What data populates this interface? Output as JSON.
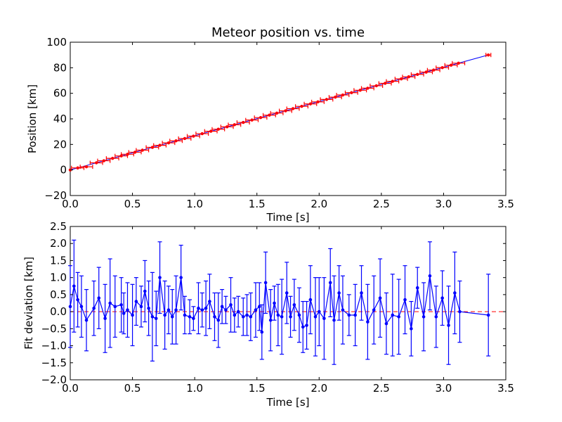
{
  "colors": {
    "background": "#ffffff",
    "axes_frame": "#000000",
    "fit_line": "#0000ff",
    "position_error_bars": "#ff0000",
    "position_points": "#ff0000",
    "deviation_series": "#0000ff",
    "zero_line": "#ff0000"
  },
  "chart_data": [
    {
      "type": "line",
      "title": "Meteor position vs. time",
      "xlabel": "Time [s]",
      "ylabel": "Position [km]",
      "xlim": [
        0.0,
        3.5
      ],
      "ylim": [
        -20,
        100
      ],
      "xticks": [
        "0.0",
        "0.5",
        "1.0",
        "1.5",
        "2.0",
        "2.5",
        "3.0",
        "3.5"
      ],
      "yticks": [
        "−20",
        "0",
        "20",
        "40",
        "60",
        "80",
        "100"
      ],
      "legend": "none",
      "grid": false,
      "series": [
        {
          "style": "linear fit line",
          "x": [
            0.0,
            3.36
          ],
          "y": [
            0.0,
            90.0
          ]
        },
        {
          "style": "points with horizontal error bars",
          "x": [
            0.0,
            0.06,
            0.13,
            0.21,
            0.27,
            0.34,
            0.41,
            0.46,
            0.52,
            0.58,
            0.66,
            0.72,
            0.79,
            0.85,
            0.92,
            0.99,
            1.06,
            1.13,
            1.19,
            1.26,
            1.32,
            1.39,
            1.46,
            1.53,
            1.6,
            1.66,
            1.73,
            1.79,
            1.86,
            1.93,
            1.99,
            2.06,
            2.13,
            2.19,
            2.26,
            2.33,
            2.39,
            2.46,
            2.53,
            2.59,
            2.66,
            2.72,
            2.79,
            2.86,
            2.92,
            2.99,
            3.06,
            3.12,
            3.36
          ],
          "y": [
            0.0,
            1.6,
            2.5,
            5.6,
            7.2,
            9.1,
            11.0,
            12.3,
            13.9,
            15.5,
            17.7,
            19.3,
            21.2,
            22.8,
            24.6,
            26.5,
            28.4,
            30.3,
            31.9,
            33.8,
            35.4,
            37.2,
            39.1,
            41.0,
            42.9,
            44.5,
            46.3,
            48.0,
            49.8,
            51.7,
            53.3,
            55.2,
            57.0,
            58.7,
            60.5,
            62.4,
            64.0,
            65.9,
            67.8,
            69.4,
            71.3,
            72.9,
            74.8,
            76.6,
            78.2,
            80.1,
            82.0,
            83.6,
            90.0
          ],
          "xerr": [
            0.0,
            0.05,
            0.05,
            0.05,
            0.05,
            0.05,
            0.05,
            0.05,
            0.05,
            0.05,
            0.05,
            0.05,
            0.05,
            0.05,
            0.05,
            0.05,
            0.05,
            0.05,
            0.05,
            0.05,
            0.05,
            0.05,
            0.05,
            0.05,
            0.05,
            0.05,
            0.05,
            0.05,
            0.05,
            0.05,
            0.05,
            0.05,
            0.05,
            0.05,
            0.05,
            0.05,
            0.05,
            0.05,
            0.05,
            0.05,
            0.05,
            0.05,
            0.05,
            0.05,
            0.05,
            0.05,
            0.05,
            0.05,
            0.02
          ]
        }
      ]
    },
    {
      "type": "line",
      "title": "",
      "xlabel": "Time [s]",
      "ylabel": "Fit deviation [km]",
      "xlim": [
        0.0,
        3.5
      ],
      "ylim": [
        -2.0,
        2.5
      ],
      "xticks": [
        "0.0",
        "0.5",
        "1.0",
        "1.5",
        "2.0",
        "2.5",
        "3.0",
        "3.5"
      ],
      "yticks": [
        "−2.0",
        "−1.5",
        "−1.0",
        "−0.5",
        "0.0",
        "0.5",
        "1.0",
        "1.5",
        "2.0",
        "2.5"
      ],
      "legend": "none",
      "grid": false,
      "series": [
        {
          "style": "points with vertical error bars connected by line",
          "x": [
            0.0,
            0.03,
            0.06,
            0.09,
            0.13,
            0.19,
            0.23,
            0.28,
            0.32,
            0.36,
            0.41,
            0.43,
            0.46,
            0.5,
            0.53,
            0.57,
            0.6,
            0.63,
            0.66,
            0.69,
            0.72,
            0.76,
            0.79,
            0.82,
            0.85,
            0.89,
            0.92,
            0.96,
            0.99,
            1.03,
            1.06,
            1.09,
            1.12,
            1.16,
            1.19,
            1.22,
            1.25,
            1.29,
            1.32,
            1.35,
            1.39,
            1.42,
            1.45,
            1.49,
            1.52,
            1.54,
            1.57,
            1.61,
            1.64,
            1.67,
            1.7,
            1.74,
            1.77,
            1.8,
            1.84,
            1.87,
            1.9,
            1.93,
            1.97,
            2.0,
            2.04,
            2.09,
            2.12,
            2.16,
            2.19,
            2.24,
            2.29,
            2.34,
            2.39,
            2.44,
            2.49,
            2.54,
            2.59,
            2.64,
            2.69,
            2.74,
            2.79,
            2.84,
            2.89,
            2.94,
            2.99,
            3.04,
            3.09,
            3.13,
            3.36
          ],
          "y": [
            0.15,
            0.75,
            0.35,
            0.15,
            -0.25,
            0.1,
            0.4,
            -0.2,
            0.25,
            0.15,
            0.2,
            -0.05,
            0.05,
            -0.1,
            0.3,
            0.15,
            0.6,
            0.1,
            -0.15,
            -0.2,
            1.0,
            -0.1,
            0.05,
            -0.15,
            0.05,
            1.0,
            -0.1,
            -0.15,
            -0.2,
            0.1,
            0.05,
            0.1,
            0.3,
            -0.15,
            -0.25,
            0.15,
            0.05,
            0.2,
            -0.1,
            0.0,
            -0.15,
            -0.1,
            -0.15,
            0.05,
            0.15,
            -0.6,
            0.85,
            -0.25,
            0.25,
            -0.1,
            -0.15,
            0.55,
            -0.15,
            0.2,
            -0.1,
            -0.45,
            -0.4,
            0.35,
            -0.15,
            0.0,
            -0.2,
            0.85,
            -0.25,
            0.55,
            0.05,
            -0.1,
            -0.1,
            0.55,
            -0.3,
            0.05,
            0.4,
            -0.35,
            -0.1,
            -0.15,
            0.35,
            -0.5,
            0.7,
            -0.15,
            1.05,
            -0.15,
            0.4,
            -0.4,
            0.55,
            0.0,
            -0.1
          ],
          "yerr": [
            1.2,
            1.35,
            0.8,
            0.9,
            0.9,
            0.8,
            0.9,
            1.0,
            1.3,
            0.9,
            0.8,
            0.6,
            0.8,
            0.9,
            0.7,
            0.6,
            0.9,
            0.8,
            1.3,
            0.8,
            1.05,
            1.0,
            0.7,
            0.8,
            1.0,
            0.95,
            0.55,
            0.5,
            0.35,
            0.75,
            0.5,
            0.8,
            0.8,
            0.7,
            0.8,
            0.5,
            0.4,
            0.8,
            0.5,
            0.45,
            0.55,
            0.6,
            0.7,
            0.8,
            0.7,
            0.8,
            0.9,
            0.9,
            0.5,
            0.9,
            1.1,
            0.9,
            0.6,
            0.75,
            0.8,
            0.75,
            0.7,
            1.0,
            1.15,
            1.0,
            1.2,
            1.0,
            1.3,
            0.8,
            1.0,
            0.6,
            0.9,
            0.8,
            1.1,
            1.0,
            1.15,
            0.9,
            1.2,
            1.1,
            1.0,
            0.8,
            0.6,
            1.0,
            1.0,
            0.9,
            0.8,
            1.15,
            1.2,
            0.9,
            1.2
          ]
        },
        {
          "style": "dashed zero line",
          "x": [
            0.0,
            3.5
          ],
          "y": [
            0.0,
            0.0
          ]
        }
      ]
    }
  ]
}
